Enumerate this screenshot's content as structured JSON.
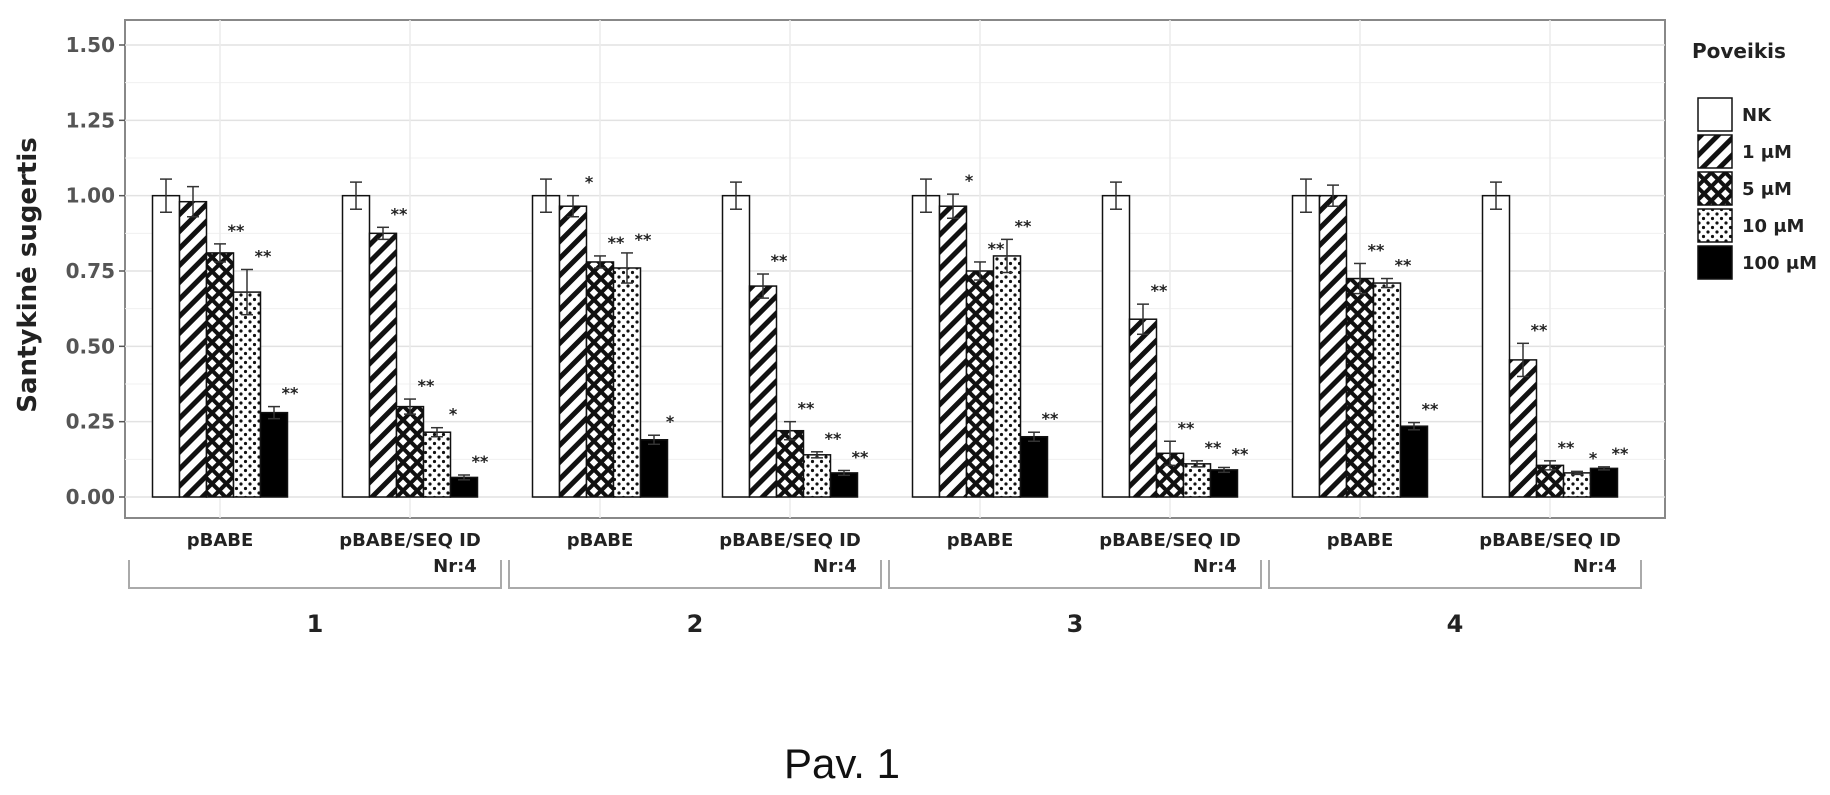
{
  "chart_data": {
    "type": "bar",
    "ylabel": "Santykinė sugertis",
    "ylim": [
      0,
      1.5
    ],
    "yticks": [
      "0.00",
      "0.25",
      "0.50",
      "0.75",
      "1.00",
      "1.25",
      "1.50"
    ],
    "grid": true,
    "legend": {
      "title": "Poveikis",
      "placement": "right",
      "entries": [
        {
          "label": "NK",
          "pattern": "white"
        },
        {
          "label": "1 μM",
          "pattern": "diagonal-stripes"
        },
        {
          "label": "5 μM",
          "pattern": "crosshatch"
        },
        {
          "label": "10 μM",
          "pattern": "dots"
        },
        {
          "label": "100 μM",
          "pattern": "black"
        }
      ]
    },
    "series_names": [
      "NK",
      "1 μM",
      "5 μM",
      "10 μM",
      "100 μM"
    ],
    "panels": [
      {
        "label": "1",
        "groups": [
          {
            "label": [
              "pBABE",
              ""
            ],
            "values": [
              1.0,
              0.98,
              0.81,
              0.68,
              0.28
            ],
            "errors": [
              0.055,
              0.05,
              0.03,
              0.075,
              0.02
            ],
            "sig": [
              "",
              "",
              "**",
              "**",
              "**"
            ]
          },
          {
            "label": [
              "pBABE/SEQ ID",
              "Nr:4"
            ],
            "values": [
              1.0,
              0.875,
              0.3,
              0.215,
              0.065
            ],
            "errors": [
              0.045,
              0.02,
              0.025,
              0.015,
              0.008
            ],
            "sig": [
              "",
              "**",
              "**",
              "*",
              "**"
            ]
          }
        ]
      },
      {
        "label": "2",
        "groups": [
          {
            "label": [
              "pBABE",
              ""
            ],
            "values": [
              1.0,
              0.965,
              0.78,
              0.76,
              0.19
            ],
            "errors": [
              0.055,
              0.035,
              0.02,
              0.05,
              0.015
            ],
            "sig": [
              "",
              "*",
              "**",
              "**",
              "*"
            ]
          },
          {
            "label": [
              "pBABE/SEQ ID",
              "Nr:4"
            ],
            "values": [
              1.0,
              0.7,
              0.22,
              0.14,
              0.08
            ],
            "errors": [
              0.045,
              0.04,
              0.03,
              0.01,
              0.008
            ],
            "sig": [
              "",
              "**",
              "**",
              "**",
              "**"
            ]
          }
        ]
      },
      {
        "label": "3",
        "groups": [
          {
            "label": [
              "pBABE",
              ""
            ],
            "values": [
              1.0,
              0.965,
              0.75,
              0.8,
              0.2
            ],
            "errors": [
              0.055,
              0.04,
              0.03,
              0.055,
              0.015
            ],
            "sig": [
              "",
              "*",
              "**",
              "**",
              "**"
            ]
          },
          {
            "label": [
              "pBABE/SEQ ID",
              "Nr:4"
            ],
            "values": [
              1.0,
              0.59,
              0.145,
              0.11,
              0.09
            ],
            "errors": [
              0.045,
              0.05,
              0.04,
              0.01,
              0.008
            ],
            "sig": [
              "",
              "**",
              "**",
              "**",
              "**"
            ]
          }
        ]
      },
      {
        "label": "4",
        "groups": [
          {
            "label": [
              "pBABE",
              ""
            ],
            "values": [
              1.0,
              1.0,
              0.725,
              0.71,
              0.235
            ],
            "errors": [
              0.055,
              0.035,
              0.05,
              0.015,
              0.012
            ],
            "sig": [
              "",
              "",
              "**",
              "**",
              "**"
            ]
          },
          {
            "label": [
              "pBABE/SEQ ID",
              "Nr:4"
            ],
            "values": [
              1.0,
              0.455,
              0.105,
              0.08,
              0.095
            ],
            "errors": [
              0.045,
              0.055,
              0.015,
              0.005,
              0.005
            ],
            "sig": [
              "",
              "**",
              "**",
              "*",
              "**"
            ]
          }
        ]
      }
    ]
  },
  "caption": "Pav. 1"
}
